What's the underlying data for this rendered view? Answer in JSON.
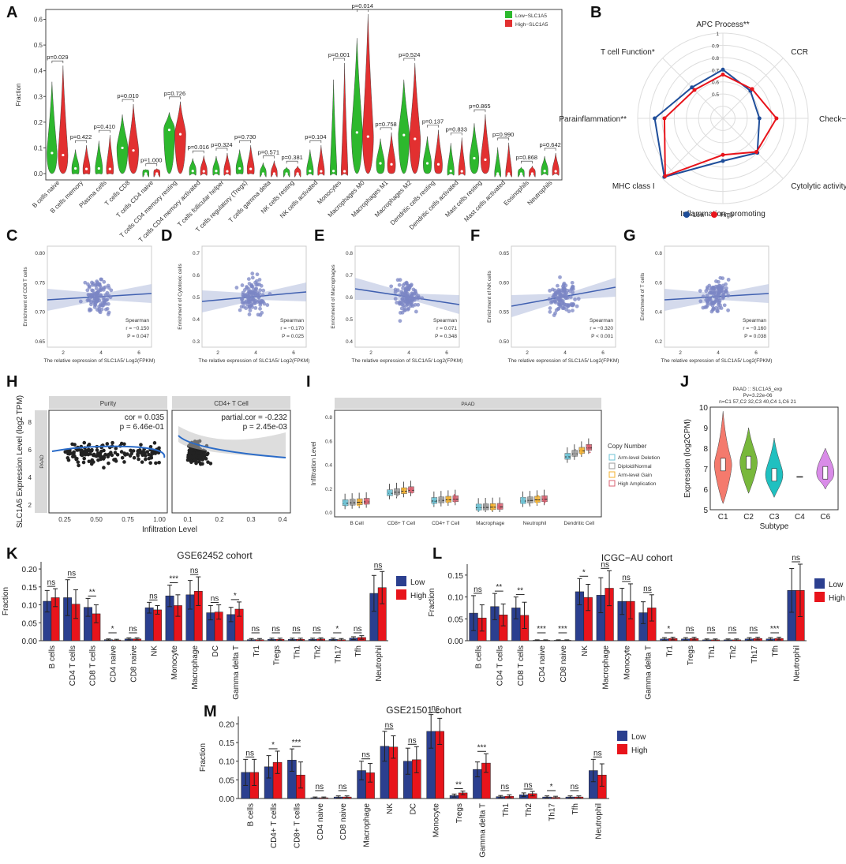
{
  "colors": {
    "low_green": "#2db82d",
    "high_red": "#e23030",
    "low_blue": "#2b3f8f",
    "high_red2": "#e8141b",
    "radar_low": "#1f4e9a",
    "radar_high": "#e8141b",
    "scatter": "#7b86c4",
    "band": "#b8c2e0",
    "line": "#4060b0"
  },
  "panels": {
    "A": {
      "letter": "A",
      "ylabel": "Fraction",
      "yticks": [
        "0.0",
        "0.1",
        "0.2",
        "0.3",
        "0.4",
        "0.5",
        "0.6"
      ],
      "legend": [
        "Low−SLC1A5",
        "High−SLC1A5"
      ],
      "categories": [
        "B cells naive",
        "B cells memory",
        "Plasma cells",
        "T cells CD8",
        "T cells CD4 naive",
        "T cells CD4 memory resting",
        "T cells CD4 memory activated",
        "T cells follicular helper",
        "T cells regulatory (Tregs)",
        "T cells gamma delta",
        "NK cells resting",
        "NK cells activated",
        "Monocytes",
        "Macrophages M0",
        "Macrophages M1",
        "Macrophages M2",
        "Dendritic cells resting",
        "Dendritic cells activated",
        "Mast cells resting",
        "Mast cells activated",
        "Eosinophils",
        "Neutrophils"
      ],
      "pvalues": [
        "p=0.029",
        "p=0.422",
        "p=0.410",
        "p=0.010",
        "p=1.000",
        "p=0.726",
        "p=0.016",
        "p=0.324",
        "p=0.730",
        "p=0.571",
        "p=0.381",
        "p=0.104",
        "p=0.001",
        "p=0.014",
        "p=0.758",
        "p=0.524",
        "p=0.137",
        "p=0.833",
        "p=0.865",
        "p=0.990",
        "p=0.868",
        "p=0.642"
      ]
    },
    "B": {
      "letter": "B",
      "axes": [
        "APC Process**",
        "CCR",
        "Check−point**",
        "Cytolytic activity",
        "Inflammation−promoting",
        "MHC class I",
        "Parainflammation**",
        "T cell Function*"
      ],
      "rings": [
        "0.5",
        "0.6",
        "0.7",
        "0.8",
        "0.9",
        "1"
      ],
      "legend": [
        "Low",
        "High"
      ]
    },
    "C": {
      "letter": "C",
      "ylabel": "Enrichment of CD8 T cells",
      "xlabel": "The relative expression of SLC1A5/ Log2(FPKM)",
      "stat1": "Spearman",
      "stat2": "r = −0.150",
      "stat3": "P = 0.047",
      "yticks": [
        "0.65",
        "0.70",
        "0.75",
        "0.80"
      ],
      "xticks": [
        "2",
        "4",
        "6"
      ]
    },
    "D": {
      "letter": "D",
      "ylabel": "Enrichment of Cytotoxic cells",
      "xlabel": "The relative expression of SLC1A5/ Log2(FPKM)",
      "stat1": "Spearman",
      "stat2": "r = −0.170",
      "stat3": "P = 0.025",
      "yticks": [
        "0.3",
        "0.4",
        "0.5",
        "0.6",
        "0.7"
      ],
      "xticks": [
        "2",
        "4",
        "6"
      ]
    },
    "E": {
      "letter": "E",
      "ylabel": "Enrichment of Macrophages",
      "xlabel": "The relative expression of SLC1A5/ Log2(FPKM)",
      "stat1": "Spearman",
      "stat2": "r = 0.071",
      "stat3": "P = 0.348",
      "yticks": [
        "0.4",
        "0.5",
        "0.6",
        "0.7",
        "0.8"
      ],
      "xticks": [
        "2",
        "4",
        "6"
      ]
    },
    "F": {
      "letter": "F",
      "ylabel": "Enrichment of NK cells",
      "xlabel": "The relative expression of SLC1A5/ Log2(FPKM)",
      "stat1": "Spearman",
      "stat2": "r = −0.320",
      "stat3": "P < 0.001",
      "yticks": [
        "0.50",
        "0.55",
        "0.60",
        "0.65"
      ],
      "xticks": [
        "2",
        "4",
        "6"
      ]
    },
    "G": {
      "letter": "G",
      "ylabel": "Enrichment of T cells",
      "xlabel": "The relative expression of SLC1A5/ Log2(FPKM)",
      "stat1": "Spearman",
      "stat2": "r = −0.160",
      "stat3": "P = 0.038",
      "yticks": [
        "0.2",
        "0.4",
        "0.6",
        "0.8"
      ],
      "xticks": [
        "2",
        "4",
        "6"
      ]
    },
    "H": {
      "letter": "H",
      "ylabel": "SLC1A5 Expression Level (log2 TPM)",
      "xlabel": "Infiltration Level",
      "strip1": "Purity",
      "strip2": "CD4+ T Cell",
      "side": "PAAD",
      "cor1": "cor = 0.035",
      "p1": "p = 6.46e-01",
      "cor2": "partial.cor = -0.232",
      "p2": "p = 2.45e-03",
      "yticks": [
        "2",
        "4",
        "6",
        "8"
      ],
      "xticks1": [
        "0.25",
        "0.50",
        "0.75",
        "1.00"
      ],
      "xticks2": [
        "0.1",
        "0.2",
        "0.3",
        "0.4"
      ]
    },
    "I": {
      "letter": "I",
      "strip": "PAAD",
      "ylabel": "Infiltration Level",
      "yticks": [
        "0.0",
        "0.2",
        "0.4",
        "0.6",
        "0.8"
      ],
      "categories": [
        "B Cell",
        "CD8+ T Cell",
        "CD4+ T Cell",
        "Macrophage",
        "Neutrophil",
        "Dendritic Cell"
      ],
      "legend_title": "Copy Number",
      "legend": [
        "Arm-level Deletion",
        "Diploid/Normal",
        "Arm-level Gain",
        "High Amplication"
      ]
    },
    "J": {
      "letter": "J",
      "title1": "PAAD :: SLC1A5_exp",
      "title2": "Pv=3.22e-06",
      "title3": "n=C1 57,C2 32,C3 40,C4 1,C6 21",
      "ylabel": "Expression (log2CPM)",
      "xlabel": "Subtype",
      "yticks": [
        "5",
        "6",
        "7",
        "8",
        "9",
        "10"
      ],
      "categories": [
        "C1",
        "C2",
        "C3",
        "C4",
        "C6"
      ]
    },
    "K": {
      "letter": "K",
      "title": "GSE62452 cohort",
      "ylabel": "Fraction",
      "yticks": [
        "0.00",
        "0.05",
        "0.10",
        "0.15",
        "0.20"
      ],
      "legend": [
        "Low",
        "High"
      ],
      "categories": [
        "B cells",
        "CD4 T cells",
        "CD8 T cells",
        "CD4 naive",
        "CD8 naive",
        "NK",
        "Monocyte",
        "Macrophage",
        "DC",
        "Gamma delta T",
        "Tr1",
        "Tregs",
        "Th1",
        "Th2",
        "Th17",
        "Tfh",
        "Neutrophil"
      ],
      "sig": [
        "ns",
        "ns",
        "**",
        "*",
        "ns",
        "ns",
        "***",
        "ns",
        "ns",
        "*",
        "ns",
        "ns",
        "ns",
        "ns",
        "*",
        "ns",
        "ns"
      ]
    },
    "L": {
      "letter": "L",
      "title": "ICGC−AU cohort",
      "ylabel": "Fraction",
      "yticks": [
        "0.00",
        "0.05",
        "0.10",
        "0.15"
      ],
      "legend": [
        "Low",
        "High"
      ],
      "categories": [
        "B cells",
        "CD4 T cells",
        "CD8 T cells",
        "CD4 naive",
        "CD8 naive",
        "NK",
        "Macrophage",
        "Monocyte",
        "Gamma delta T",
        "Tr1",
        "Tregs",
        "Th1",
        "Th2",
        "Th17",
        "Tfh",
        "Neutrophil"
      ],
      "sig": [
        "ns",
        "**",
        "**",
        "***",
        "***",
        "*",
        "ns",
        "ns",
        "ns",
        "*",
        "ns",
        "ns",
        "ns",
        "ns",
        "***",
        "ns"
      ]
    },
    "M": {
      "letter": "M",
      "title": "GSE21501 cohort",
      "ylabel": "Fraction",
      "yticks": [
        "0.00",
        "0.05",
        "0.10",
        "0.15",
        "0.20"
      ],
      "legend": [
        "Low",
        "High"
      ],
      "categories": [
        "B cells",
        "CD4+ T cells",
        "CD8+ T cells",
        "CD4 naive",
        "CD8 naive",
        "Macrophage",
        "NK",
        "DC",
        "Monocyte",
        "Tregs",
        "Gamma delta T",
        "Th1",
        "Th2",
        "Th17",
        "Tfh",
        "Neutrophil"
      ],
      "sig": [
        "ns",
        "*",
        "***",
        "ns",
        "ns",
        "ns",
        "ns",
        "ns",
        "ns",
        "**",
        "***",
        "ns",
        "ns",
        "*",
        "ns",
        "ns"
      ]
    }
  },
  "chart_data": [
    {
      "type": "bar",
      "panel": "K",
      "title": "GSE62452 cohort",
      "ylabel": "Fraction",
      "ylim": [
        0,
        0.22
      ],
      "categories": [
        "B cells",
        "CD4 T cells",
        "CD8 T cells",
        "CD4 naive",
        "CD8 naive",
        "NK",
        "Monocyte",
        "Macrophage",
        "DC",
        "Gamma delta T",
        "Tr1",
        "Tregs",
        "Th1",
        "Th2",
        "Th17",
        "Tfh",
        "Neutrophil"
      ],
      "series": [
        {
          "name": "Low",
          "values": [
            0.11,
            0.12,
            0.093,
            0.003,
            0.005,
            0.092,
            0.125,
            0.128,
            0.078,
            0.073,
            0.003,
            0.004,
            0.004,
            0.004,
            0.004,
            0.007,
            0.132
          ],
          "errors": [
            0.03,
            0.05,
            0.025,
            0.002,
            0.003,
            0.015,
            0.03,
            0.04,
            0.02,
            0.02,
            0.003,
            0.003,
            0.003,
            0.003,
            0.003,
            0.004,
            0.05
          ]
        },
        {
          "name": "High",
          "values": [
            0.12,
            0.102,
            0.075,
            0.002,
            0.005,
            0.086,
            0.098,
            0.138,
            0.08,
            0.088,
            0.003,
            0.004,
            0.004,
            0.005,
            0.003,
            0.009,
            0.148
          ],
          "errors": [
            0.025,
            0.04,
            0.025,
            0.002,
            0.003,
            0.012,
            0.03,
            0.04,
            0.02,
            0.02,
            0.003,
            0.003,
            0.003,
            0.003,
            0.003,
            0.005,
            0.045
          ]
        }
      ]
    },
    {
      "type": "bar",
      "panel": "L",
      "title": "ICGC−AU cohort",
      "ylabel": "Fraction",
      "ylim": [
        0,
        0.17
      ],
      "categories": [
        "B cells",
        "CD4 T cells",
        "CD8 T cells",
        "CD4 naive",
        "CD8 naive",
        "NK",
        "Macrophage",
        "Monocyte",
        "Gamma delta T",
        "Tr1",
        "Tregs",
        "Th1",
        "Th2",
        "Th17",
        "Tfh",
        "Neutrophil"
      ],
      "series": [
        {
          "name": "Low",
          "values": [
            0.063,
            0.078,
            0.075,
            0.001,
            0.001,
            0.112,
            0.104,
            0.09,
            0.064,
            0.004,
            0.004,
            0.002,
            0.002,
            0.004,
            0.004,
            0.115
          ],
          "errors": [
            0.04,
            0.03,
            0.025,
            0.001,
            0.001,
            0.03,
            0.04,
            0.03,
            0.025,
            0.003,
            0.003,
            0.002,
            0.002,
            0.003,
            0.003,
            0.05
          ]
        },
        {
          "name": "High",
          "values": [
            0.052,
            0.059,
            0.058,
            0.001,
            0.001,
            0.099,
            0.12,
            0.09,
            0.075,
            0.005,
            0.005,
            0.002,
            0.002,
            0.005,
            0.005,
            0.115
          ],
          "errors": [
            0.03,
            0.025,
            0.03,
            0.001,
            0.001,
            0.03,
            0.04,
            0.04,
            0.03,
            0.003,
            0.003,
            0.002,
            0.002,
            0.003,
            0.003,
            0.06
          ]
        }
      ]
    },
    {
      "type": "bar",
      "panel": "M",
      "title": "GSE21501 cohort",
      "ylabel": "Fraction",
      "ylim": [
        0,
        0.22
      ],
      "categories": [
        "B cells",
        "CD4+ T cells",
        "CD8+ T cells",
        "CD4 naive",
        "CD8 naive",
        "Macrophage",
        "NK",
        "DC",
        "Monocyte",
        "Tregs",
        "Gamma delta T",
        "Th1",
        "Th2",
        "Th17",
        "Tfh",
        "Neutrophil"
      ],
      "series": [
        {
          "name": "Low",
          "values": [
            0.07,
            0.085,
            0.103,
            0.002,
            0.004,
            0.075,
            0.14,
            0.1,
            0.18,
            0.008,
            0.078,
            0.005,
            0.01,
            0.004,
            0.004,
            0.075
          ],
          "errors": [
            0.035,
            0.03,
            0.03,
            0.002,
            0.003,
            0.025,
            0.04,
            0.035,
            0.045,
            0.004,
            0.02,
            0.003,
            0.005,
            0.003,
            0.003,
            0.03
          ]
        },
        {
          "name": "High",
          "values": [
            0.07,
            0.097,
            0.063,
            0.002,
            0.004,
            0.069,
            0.138,
            0.104,
            0.18,
            0.015,
            0.095,
            0.006,
            0.013,
            0.003,
            0.004,
            0.063
          ],
          "errors": [
            0.035,
            0.03,
            0.035,
            0.002,
            0.003,
            0.025,
            0.03,
            0.035,
            0.035,
            0.005,
            0.025,
            0.004,
            0.006,
            0.003,
            0.003,
            0.03
          ]
        }
      ]
    },
    {
      "type": "radar",
      "panel": "B",
      "axes": [
        "APC Process**",
        "CCR",
        "Check−point**",
        "Cytolytic activity",
        "Inflammation−promoting",
        "MHC class I",
        "Parainflammation**",
        "T cell Function*"
      ],
      "range": [
        0.5,
        1
      ],
      "series": [
        {
          "name": "Low",
          "values": [
            0.7,
            0.62,
            0.6,
            0.7,
            0.65,
            0.98,
            0.86,
            0.66
          ]
        },
        {
          "name": "High",
          "values": [
            0.66,
            0.64,
            0.74,
            0.69,
            0.6,
            0.97,
            0.78,
            0.63
          ]
        }
      ]
    }
  ]
}
